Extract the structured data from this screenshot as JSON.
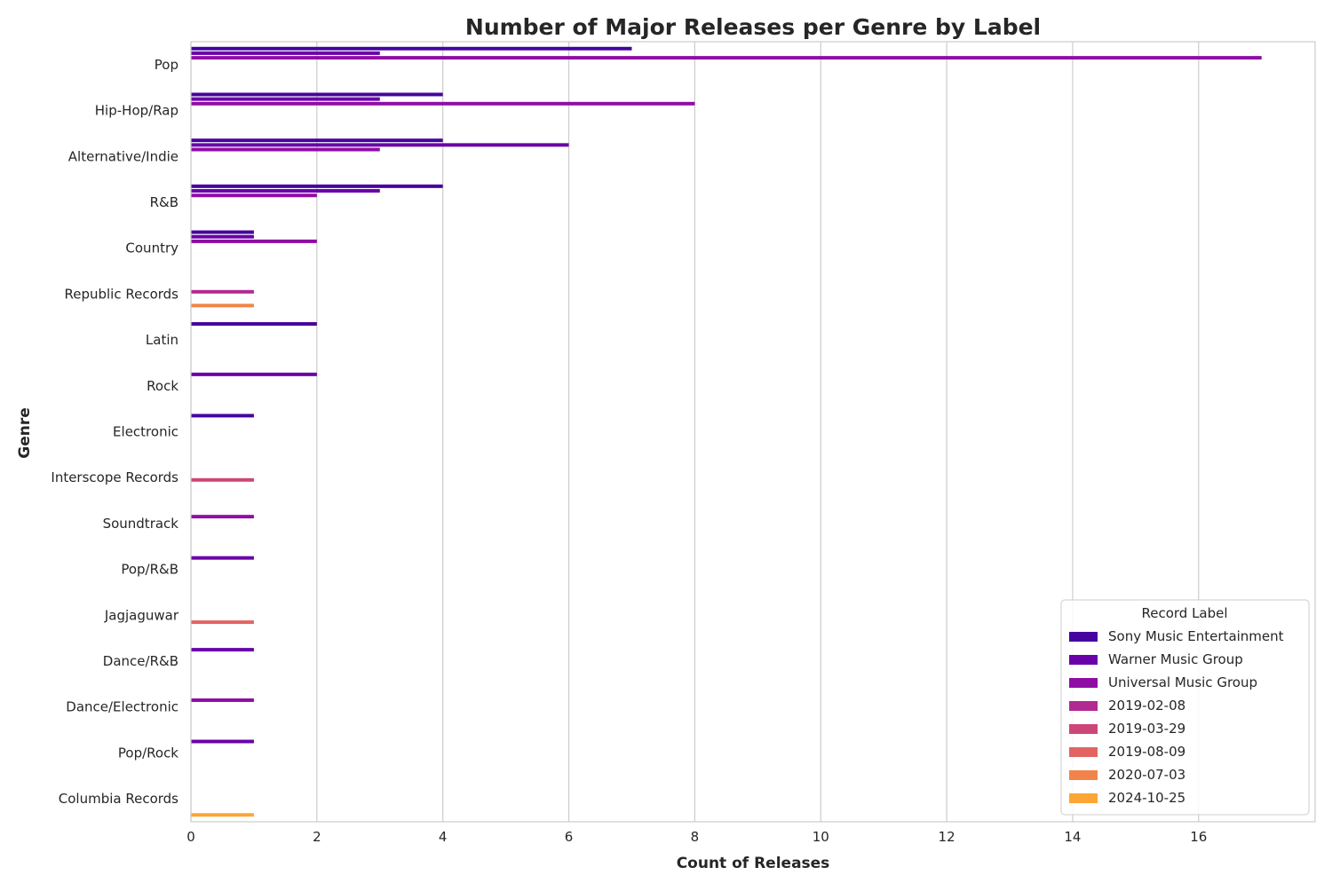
{
  "chart_data": {
    "type": "bar",
    "orientation": "horizontal",
    "title": "Number of Major Releases per Genre by Label",
    "xlabel": "Count of Releases",
    "ylabel": "Genre",
    "xlim": [
      0,
      17.85
    ],
    "xticks": [
      0,
      2,
      4,
      6,
      8,
      10,
      12,
      14,
      16
    ],
    "grid": "vertical",
    "legend_position": "lower-right",
    "legend_title": "Record Label",
    "categories": [
      "Pop",
      "Hip-Hop/Rap",
      "Alternative/Indie",
      "R&B",
      "Country",
      "Republic Records",
      "Latin",
      "Rock",
      "Electronic",
      "Interscope Records",
      "Soundtrack",
      "Pop/R&B",
      "Jagjaguwar",
      "Dance/R&B",
      "Dance/Electronic",
      "Pop/Rock",
      "Columbia Records"
    ],
    "series": [
      {
        "name": "Sony Music Entertainment",
        "color": "#46039f",
        "values": [
          7,
          4,
          4,
          4,
          1,
          0,
          2,
          0,
          1,
          0,
          0,
          0,
          0,
          0,
          0,
          0,
          0
        ]
      },
      {
        "name": "Warner Music Group",
        "color": "#6a00a8",
        "values": [
          3,
          3,
          6,
          3,
          1,
          0,
          0,
          2,
          0,
          0,
          0,
          1,
          0,
          1,
          0,
          1,
          0
        ]
      },
      {
        "name": "Universal Music Group",
        "color": "#8f0da4",
        "values": [
          17,
          8,
          3,
          2,
          2,
          0,
          0,
          0,
          0,
          0,
          1,
          0,
          0,
          0,
          1,
          0,
          0
        ]
      },
      {
        "name": "2019-02-08",
        "color": "#b12a90",
        "values": [
          0,
          0,
          0,
          0,
          0,
          1,
          0,
          0,
          0,
          0,
          0,
          0,
          0,
          0,
          0,
          0,
          0
        ]
      },
      {
        "name": "2019-03-29",
        "color": "#cc4778",
        "values": [
          0,
          0,
          0,
          0,
          0,
          0,
          0,
          0,
          0,
          1,
          0,
          0,
          0,
          0,
          0,
          0,
          0
        ]
      },
      {
        "name": "2019-08-09",
        "color": "#e16462",
        "values": [
          0,
          0,
          0,
          0,
          0,
          0,
          0,
          0,
          0,
          0,
          0,
          0,
          1,
          0,
          0,
          0,
          0
        ]
      },
      {
        "name": "2020-07-03",
        "color": "#f2844b",
        "values": [
          0,
          0,
          0,
          0,
          0,
          1,
          0,
          0,
          0,
          0,
          0,
          0,
          0,
          0,
          0,
          0,
          0
        ]
      },
      {
        "name": "2024-10-25",
        "color": "#fca636",
        "values": [
          0,
          0,
          0,
          0,
          0,
          0,
          0,
          0,
          0,
          0,
          0,
          0,
          0,
          0,
          0,
          0,
          1
        ]
      }
    ]
  }
}
